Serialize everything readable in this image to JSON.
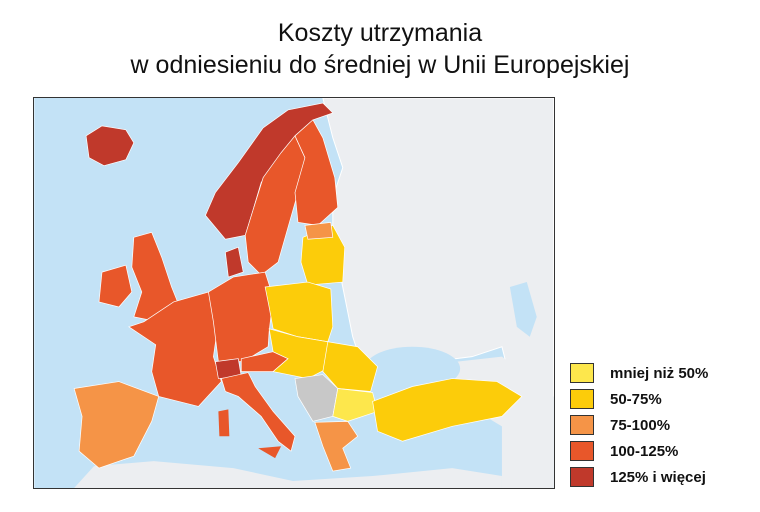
{
  "title": {
    "line1": "Koszty utrzymania",
    "line2": "w odniesieniu do średniej w Unii Europejskiej"
  },
  "colors": {
    "sea": "#c3e2f6",
    "non_eu_land": "#eceef1",
    "no_data": "#c8c8c8"
  },
  "legend": [
    {
      "label": "mniej niż 50%",
      "color": "#fde74c"
    },
    {
      "label": "50-75%",
      "color": "#fccc0a"
    },
    {
      "label": "75-100%",
      "color": "#f59447"
    },
    {
      "label": "100-125%",
      "color": "#e8572a"
    },
    {
      "label": "125% i więcej",
      "color": "#c0392b"
    }
  ]
}
